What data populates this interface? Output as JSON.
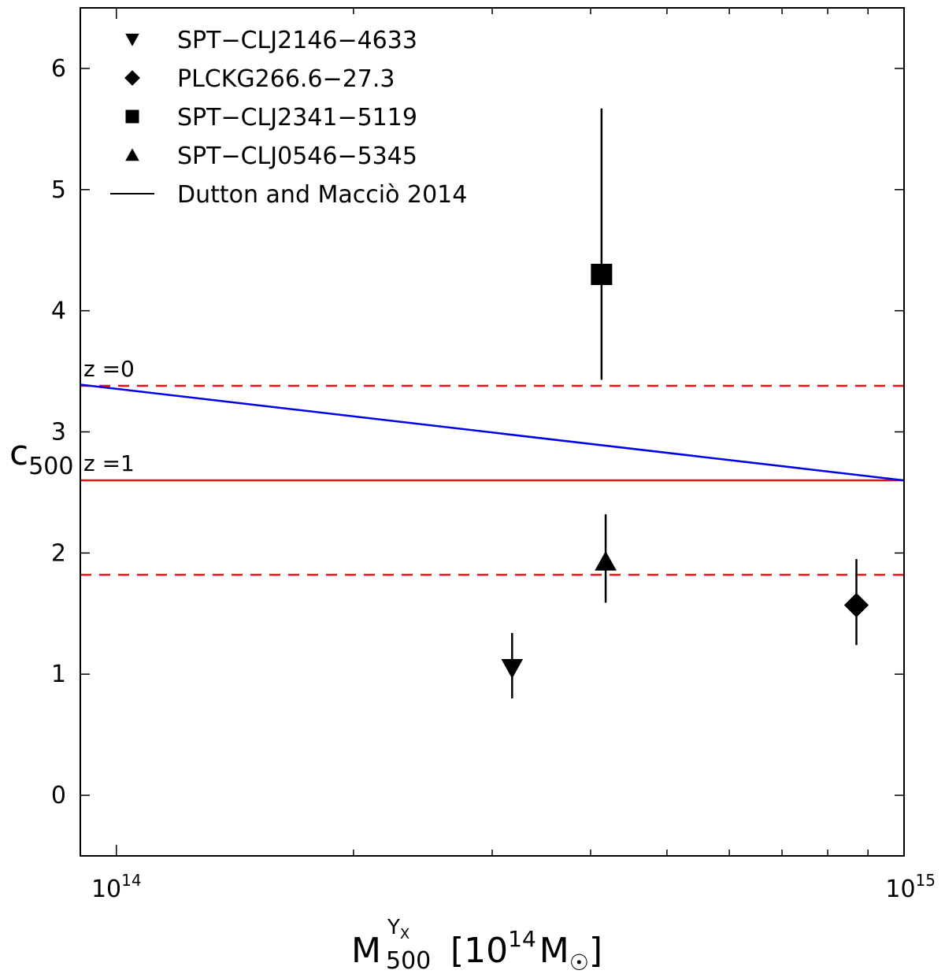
{
  "chart_data": {
    "type": "scatter",
    "x_scale": "log",
    "xlim": [
      90000000000000,
      1000000000000000
    ],
    "ylim": [
      -0.5,
      6.5
    ],
    "y_ticks": [
      0,
      1,
      2,
      3,
      4,
      5,
      6
    ],
    "y_tick_labels": [
      "0",
      "1",
      "2",
      "3",
      "4",
      "5",
      "6"
    ],
    "x_ticks": [
      {
        "value": 100000000000000,
        "base": "10",
        "exp": "14"
      },
      {
        "value": 1000000000000000,
        "base": "10",
        "exp": "15"
      }
    ],
    "xlabel": {
      "main": "M",
      "superscript": "Y",
      "super_subscript": "X",
      "subscript": "500",
      "units_open": "[10",
      "units_exp": "14",
      "units_mass": "M",
      "sun_symbol": "☉",
      "units_close": "]"
    },
    "ylabel": {
      "main": "c",
      "subscript": "500"
    },
    "series": [
      {
        "name": "SPT−CLJ2146−4633",
        "marker": "triangle-down",
        "x": 318000000000000,
        "y": 1.05,
        "yerr_low": 0.8,
        "yerr_high": 1.34
      },
      {
        "name": "PLCKG266.6−27.3",
        "marker": "diamond",
        "x": 870000000000000,
        "y": 1.57,
        "yerr_low": 1.24,
        "yerr_high": 1.95
      },
      {
        "name": "SPT−CLJ2341−5119",
        "marker": "square",
        "x": 413000000000000,
        "y": 4.3,
        "yerr_low": 3.43,
        "yerr_high": 5.67
      },
      {
        "name": "SPT−CLJ0546−5345",
        "marker": "triangle-up",
        "x": 418000000000000,
        "y": 1.93,
        "yerr_low": 1.59,
        "yerr_high": 2.32
      }
    ],
    "legend_model": {
      "name": "Dutton and Macciò 2014"
    },
    "model_line": {
      "x": [
        90000000000000,
        1000000000000000
      ],
      "y": [
        3.39,
        2.6
      ],
      "color": "#0000ee"
    },
    "z1_line": {
      "y": 2.6,
      "color": "#ee1111"
    },
    "dashed_lines": {
      "y": [
        3.38,
        1.82
      ],
      "color": "#ee1111"
    },
    "annotations": [
      {
        "text": "z =0",
        "y": 3.38
      },
      {
        "text": "z =1",
        "y": 2.6
      }
    ],
    "legend_position": "top-left"
  }
}
